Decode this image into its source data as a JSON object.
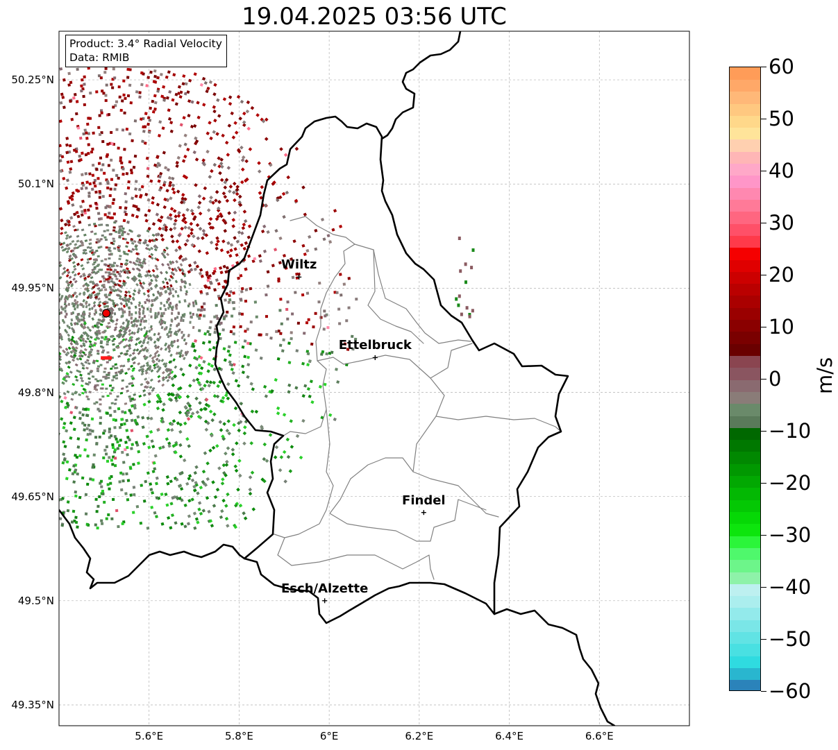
{
  "title": "19.04.2025 03:56 UTC",
  "info": {
    "product": "Product: 3.4° Radial Velocity",
    "data_source": "Data: RMIB"
  },
  "map": {
    "lon_range": [
      5.4,
      6.8
    ],
    "lat_range": [
      49.32,
      50.32
    ],
    "lat_ticks": [
      {
        "value": 50.25,
        "label": "50.25°N"
      },
      {
        "value": 50.1,
        "label": "50.1°N"
      },
      {
        "value": 49.95,
        "label": "49.95°N"
      },
      {
        "value": 49.8,
        "label": "49.8°N"
      },
      {
        "value": 49.65,
        "label": "49.65°N"
      },
      {
        "value": 49.5,
        "label": "49.5°N"
      },
      {
        "value": 49.35,
        "label": "49.35°N"
      }
    ],
    "lon_ticks": [
      {
        "value": 5.6,
        "label": "5.6°E"
      },
      {
        "value": 5.8,
        "label": "5.8°E"
      },
      {
        "value": 6.0,
        "label": "6°E"
      },
      {
        "value": 6.2,
        "label": "6.2°E"
      },
      {
        "value": 6.4,
        "label": "6.4°E"
      },
      {
        "value": 6.6,
        "label": "6.6°E"
      }
    ],
    "grid": true,
    "radar_site": {
      "lon": 5.505,
      "lat": 49.914
    },
    "cities": [
      {
        "name": "Wiltz",
        "lon": 5.933,
        "lat": 49.966
      },
      {
        "name": "Ettelbruck",
        "lon": 6.102,
        "lat": 49.85
      },
      {
        "name": "Findel",
        "lon": 6.21,
        "lat": 49.627
      },
      {
        "name": "Esch/Alzette",
        "lon": 5.99,
        "lat": 49.5
      }
    ]
  },
  "colorbar": {
    "label": "m/s",
    "min": -60,
    "max": 60,
    "ticks": [
      {
        "value": 60,
        "label": "60"
      },
      {
        "value": 50,
        "label": "50"
      },
      {
        "value": 40,
        "label": "40"
      },
      {
        "value": 30,
        "label": "30"
      },
      {
        "value": 20,
        "label": "20"
      },
      {
        "value": 10,
        "label": "10"
      },
      {
        "value": 0,
        "label": "0"
      },
      {
        "value": -10,
        "label": "−10"
      },
      {
        "value": -20,
        "label": "−20"
      },
      {
        "value": -30,
        "label": "−30"
      },
      {
        "value": -40,
        "label": "−40"
      },
      {
        "value": -50,
        "label": "−50"
      },
      {
        "value": -60,
        "label": "−60"
      }
    ],
    "colors": [
      "#2b83ba",
      "#29b6cf",
      "#2fdbe0",
      "#49e0e2",
      "#61e3e4",
      "#7ae6e7",
      "#93eaeb",
      "#abeeee",
      "#bdf0f0",
      "#8ef2a9",
      "#6df58a",
      "#4ff86c",
      "#2bf53a",
      "#0de50d",
      "#06d806",
      "#04c804",
      "#03b803",
      "#02a802",
      "#019801",
      "#018801",
      "#007800",
      "#006800",
      "#5a7a5a",
      "#6a8a6a",
      "#8a7c78",
      "#8a6a70",
      "#8a5560",
      "#8a4550",
      "#6a0000",
      "#7a0000",
      "#8a0000",
      "#9a0000",
      "#aa0000",
      "#ba0000",
      "#cc0000",
      "#e00000",
      "#f50000",
      "#ff3a4a",
      "#ff5068",
      "#ff6680",
      "#ff7a98",
      "#ff88b0",
      "#ff96c8",
      "#ffa8c8",
      "#ffb6b6",
      "#ffd0b0",
      "#ffe49a",
      "#ffd88a",
      "#ffc880",
      "#ffb878",
      "#ffa868",
      "#ff9c58"
    ]
  }
}
